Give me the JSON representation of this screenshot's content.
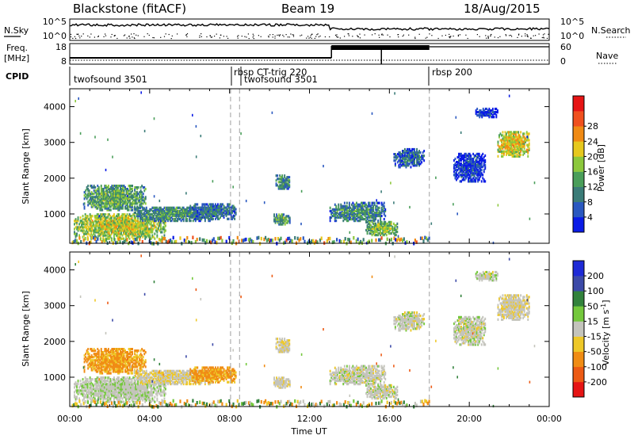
{
  "header": {
    "station": "Blackstone (fitACF)",
    "beam": "Beam 19",
    "date": "18/Aug/2015"
  },
  "side_labels": {
    "nsky": "N.Sky",
    "nsearch": "N.Search",
    "freq": "Freq.",
    "freq_unit": "[MHz]",
    "nave": "Nave",
    "cpid": "CPID"
  },
  "top_ticks": {
    "noise_left_top": "10^5",
    "noise_left_bottom": "10^0",
    "noise_right_top": "10^5",
    "noise_right_bottom": "10^0",
    "freq_left_top": "18",
    "freq_left_bottom": "8",
    "nave_right_top": "60",
    "nave_right_bottom": "0"
  },
  "cpid_segments": [
    {
      "label": "twofsound 3501",
      "start_hour": 0
    },
    {
      "label": "rbsp CT-trig 220",
      "start_hour": 8.05
    },
    {
      "label": "twofsound 3501",
      "start_hour": 8.5
    },
    {
      "label": "rbsp 200",
      "start_hour": 18
    }
  ],
  "colors": {
    "power": [
      "#0a1be6",
      "#2a58c0",
      "#3b7c78",
      "#4a9e5a",
      "#8cc83c",
      "#e6c81e",
      "#f08a14",
      "#f0501e",
      "#e61414"
    ],
    "velocity": [
      "#1e2ad6",
      "#3c4aa8",
      "#32823c",
      "#74c83c",
      "#c0c0b8",
      "#eec828",
      "#f08c14",
      "#ec5a14",
      "#e61414"
    ],
    "gray": "#c4c4bc",
    "dash": "#a0a0a0"
  },
  "chart_data": {
    "type": "heatmap",
    "x": {
      "label": "Time UT",
      "range_hours": [
        0,
        24
      ],
      "ticks": [
        "00:00",
        "04:00",
        "08:00",
        "12:00",
        "16:00",
        "20:00",
        "00:00"
      ]
    },
    "y": {
      "label": "Slant Range [km]",
      "range": [
        180,
        4500
      ],
      "ticks": [
        "1000",
        "2000",
        "3000",
        "4000"
      ]
    },
    "power": {
      "label": "Power [dB]",
      "colorbar_ticks": [
        "4",
        "8",
        "12",
        "16",
        "20",
        "24",
        "28"
      ]
    },
    "velocity": {
      "label": "Velocity [m s^-1]",
      "colorbar_ticks": [
        "200",
        "100",
        "50",
        "15",
        "-15",
        "-50",
        "-100",
        "-200"
      ]
    },
    "echo_regions": [
      {
        "t0": 0.2,
        "t1": 4.8,
        "r0": 300,
        "r1": 1000,
        "power": 18,
        "velocity": 5
      },
      {
        "t0": 0.7,
        "t1": 3.8,
        "r0": 1100,
        "r1": 1800,
        "power": 14,
        "velocity": -40
      },
      {
        "t0": 3.2,
        "t1": 7.2,
        "r0": 800,
        "r1": 1200,
        "power": 12,
        "velocity": -10
      },
      {
        "t0": 6.0,
        "t1": 8.3,
        "r0": 850,
        "r1": 1300,
        "power": 10,
        "velocity": -40
      },
      {
        "t0": 10.2,
        "t1": 11.0,
        "r0": 700,
        "r1": 1000,
        "power": 14,
        "velocity": -5
      },
      {
        "t0": 10.3,
        "t1": 11.0,
        "r0": 1700,
        "r1": 2100,
        "power": 12,
        "velocity": -5
      },
      {
        "t0": 13.0,
        "t1": 15.8,
        "r0": 800,
        "r1": 1300,
        "power": 12,
        "velocity": 0
      },
      {
        "t0": 14.8,
        "t1": 16.4,
        "r0": 400,
        "r1": 800,
        "power": 16,
        "velocity": 0
      },
      {
        "t0": 16.2,
        "t1": 17.7,
        "r0": 2300,
        "r1": 2800,
        "power": 9,
        "velocity": 0
      },
      {
        "t0": 19.2,
        "t1": 20.8,
        "r0": 1900,
        "r1": 2700,
        "power": 6,
        "velocity": 0
      },
      {
        "t0": 20.3,
        "t1": 21.4,
        "r0": 3700,
        "r1": 3950,
        "power": 6,
        "velocity": 0
      },
      {
        "t0": 21.4,
        "t1": 23.0,
        "r0": 2600,
        "r1": 3300,
        "power": 20,
        "velocity": -5
      }
    ],
    "ground_scatter_band_km": [
      180,
      350
    ]
  }
}
